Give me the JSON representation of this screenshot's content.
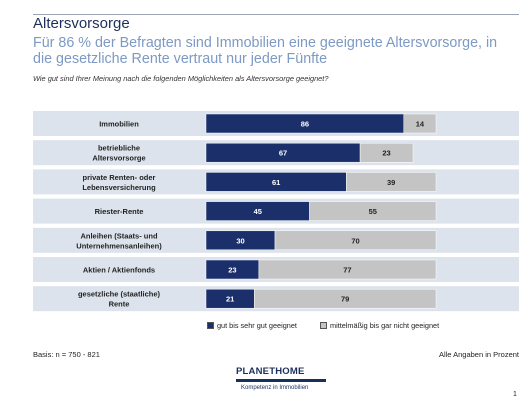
{
  "header": {
    "title": "Altersvorsorge",
    "subtitle": "Für 86 % der Befragten sind Immobilien eine geeignete Altersvorsorge, in die gesetzliche Rente vertraut nur jeder Fünfte",
    "question": "Wie gut sind Ihrer Meinung nach die folgenden Möglichkeiten als Altersvorsorge geeignet?"
  },
  "chart_data": {
    "type": "bar",
    "orientation": "horizontal",
    "stacked": true,
    "categories": [
      [
        "Immobilien"
      ],
      [
        "betriebliche",
        "Altersvorsorge"
      ],
      [
        "private Renten- oder",
        "Lebensversicherung"
      ],
      [
        "Riester-Rente"
      ],
      [
        "Anleihen (Staats- und",
        "Unternehmensanleihen)"
      ],
      [
        "Aktien / Aktienfonds"
      ],
      [
        "gesetzliche (staatliche)",
        "Rente"
      ]
    ],
    "series": [
      {
        "name": "gut bis sehr gut geeignet",
        "values": [
          86,
          67,
          61,
          45,
          30,
          23,
          21
        ],
        "color": "#1b2f6b"
      },
      {
        "name": "mittelmäßig bis gar nicht geeignet",
        "values": [
          14,
          23,
          39,
          55,
          70,
          77,
          79
        ],
        "color": "#c4c4c4"
      }
    ],
    "xlim": [
      0,
      100
    ],
    "band_color": "#dce3ec",
    "legend_position": "bottom",
    "grid": false
  },
  "footer": {
    "basis": "Basis: n = 750 - 821",
    "note": "Alle Angaben in Prozent",
    "page": "1"
  },
  "logo": {
    "name_part1": "PLANET",
    "name_part2": "HOME",
    "tagline": "Kompetenz in Immobilien"
  }
}
